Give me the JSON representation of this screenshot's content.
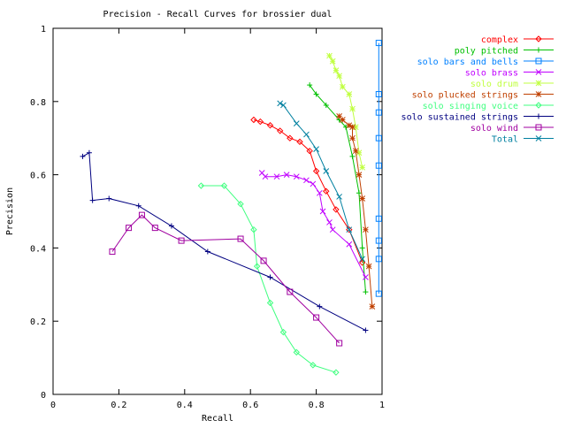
{
  "chart_data": {
    "type": "line",
    "title": "Precision - Recall Curves for brossier dual",
    "xlabel": "Recall",
    "ylabel": "Precision",
    "xlim": [
      0,
      1
    ],
    "ylim": [
      0,
      1
    ],
    "xticks": [
      "0",
      "0.2",
      "0.4",
      "0.6",
      "0.8",
      "1"
    ],
    "yticks": [
      "0",
      "0.2",
      "0.4",
      "0.6",
      "0.8",
      "1"
    ],
    "grid": false,
    "legend_position": "top-right",
    "series": [
      {
        "name": "complex",
        "color": "#ff0000",
        "marker": "diamond",
        "x": [
          0.61,
          0.63,
          0.66,
          0.69,
          0.72,
          0.75,
          0.78,
          0.8,
          0.83,
          0.86,
          0.9,
          0.94
        ],
        "y": [
          0.75,
          0.745,
          0.735,
          0.72,
          0.7,
          0.69,
          0.665,
          0.61,
          0.555,
          0.505,
          0.45,
          0.36
        ]
      },
      {
        "name": "poly pitched",
        "color": "#00c000",
        "marker": "plus",
        "x": [
          0.78,
          0.8,
          0.83,
          0.87,
          0.89,
          0.91,
          0.93,
          0.94,
          0.95
        ],
        "y": [
          0.845,
          0.82,
          0.79,
          0.75,
          0.73,
          0.65,
          0.55,
          0.4,
          0.28
        ]
      },
      {
        "name": "solo bars and bells",
        "color": "#0080ff",
        "marker": "square",
        "x": [
          0.99,
          0.99,
          0.99,
          0.99,
          0.99,
          0.99,
          0.99,
          0.99,
          0.99
        ],
        "y": [
          0.96,
          0.82,
          0.77,
          0.7,
          0.625,
          0.48,
          0.42,
          0.37,
          0.275
        ]
      },
      {
        "name": "solo brass",
        "color": "#c000ff",
        "marker": "x",
        "x": [
          0.635,
          0.645,
          0.68,
          0.71,
          0.74,
          0.77,
          0.79,
          0.81,
          0.82,
          0.84,
          0.85,
          0.9,
          0.95
        ],
        "y": [
          0.605,
          0.595,
          0.595,
          0.6,
          0.595,
          0.585,
          0.575,
          0.55,
          0.5,
          0.47,
          0.45,
          0.41,
          0.32
        ]
      },
      {
        "name": "solo drum",
        "color": "#c0ff40",
        "marker": "asterisk",
        "x": [
          0.84,
          0.85,
          0.86,
          0.87,
          0.88,
          0.9,
          0.91,
          0.92,
          0.93,
          0.94
        ],
        "y": [
          0.925,
          0.91,
          0.885,
          0.87,
          0.84,
          0.82,
          0.78,
          0.73,
          0.66,
          0.62
        ]
      },
      {
        "name": "solo plucked strings",
        "color": "#c04000",
        "marker": "asterisk",
        "x": [
          0.87,
          0.88,
          0.9,
          0.91,
          0.91,
          0.92,
          0.93,
          0.94,
          0.95,
          0.96,
          0.97
        ],
        "y": [
          0.76,
          0.75,
          0.735,
          0.73,
          0.7,
          0.665,
          0.6,
          0.535,
          0.45,
          0.35,
          0.24
        ]
      },
      {
        "name": "solo singing voice",
        "color": "#40ff80",
        "marker": "diamond",
        "x": [
          0.45,
          0.52,
          0.57,
          0.61,
          0.62,
          0.66,
          0.7,
          0.74,
          0.79,
          0.86
        ],
        "y": [
          0.57,
          0.57,
          0.52,
          0.45,
          0.35,
          0.25,
          0.17,
          0.115,
          0.08,
          0.06
        ]
      },
      {
        "name": "solo sustained strings",
        "color": "#000080",
        "marker": "plus",
        "x": [
          0.09,
          0.11,
          0.12,
          0.17,
          0.26,
          0.36,
          0.47,
          0.66,
          0.81,
          0.95
        ],
        "y": [
          0.65,
          0.66,
          0.53,
          0.535,
          0.515,
          0.46,
          0.39,
          0.32,
          0.24,
          0.175
        ]
      },
      {
        "name": "solo wind",
        "color": "#a000a0",
        "marker": "square",
        "x": [
          0.18,
          0.23,
          0.27,
          0.31,
          0.39,
          0.57,
          0.64,
          0.72,
          0.8,
          0.87
        ],
        "y": [
          0.39,
          0.455,
          0.49,
          0.455,
          0.42,
          0.425,
          0.365,
          0.28,
          0.21,
          0.14
        ]
      },
      {
        "name": "Total",
        "color": "#0080a0",
        "marker": "x",
        "x": [
          0.69,
          0.7,
          0.74,
          0.77,
          0.8,
          0.83,
          0.87,
          0.9,
          0.94
        ],
        "y": [
          0.795,
          0.79,
          0.74,
          0.71,
          0.67,
          0.61,
          0.54,
          0.45,
          0.37
        ]
      }
    ]
  }
}
